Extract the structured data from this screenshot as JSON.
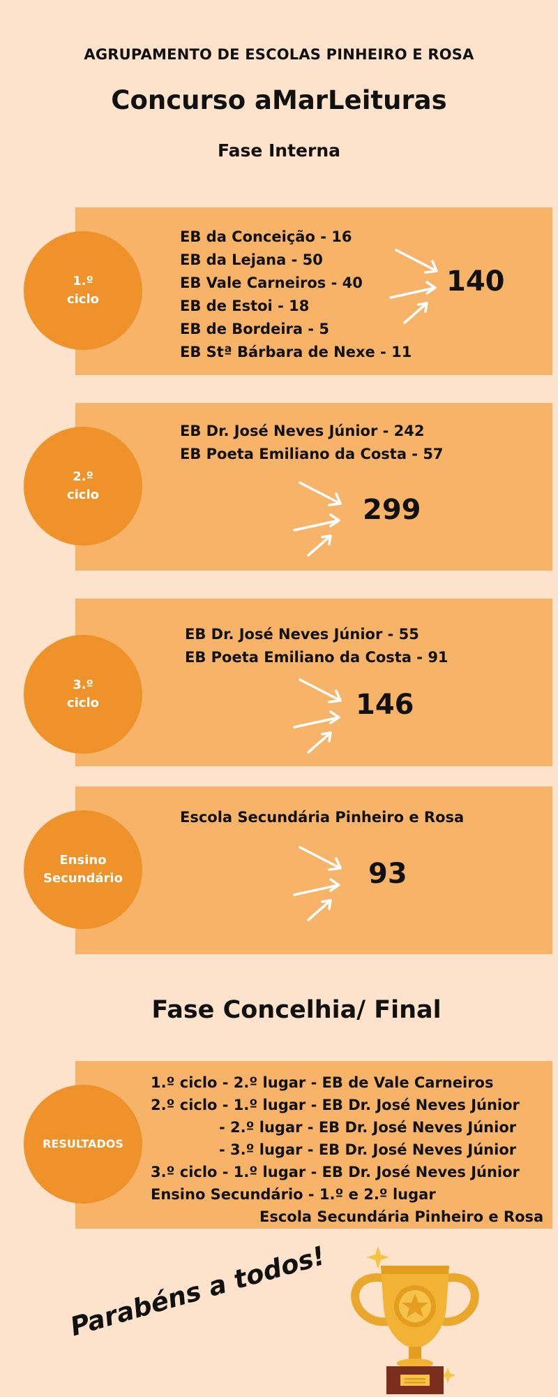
{
  "header": {
    "organization": "AGRUPAMENTO DE ESCOLAS PINHEIRO E ROSA",
    "title": "Concurso aMarLeituras",
    "phase": "Fase Interna"
  },
  "sections": [
    {
      "label_lines": [
        "1.º",
        "ciclo"
      ],
      "schools": [
        "EB da Conceição - 16",
        "EB da Lejana - 50",
        "EB Vale Carneiros - 40",
        "EB de Estoi - 18",
        "EB de Bordeira - 5",
        "EB Stª Bárbara de Nexe - 11"
      ],
      "total": "140"
    },
    {
      "label_lines": [
        "2.º",
        "ciclo"
      ],
      "schools": [
        "EB Dr. José Neves Júnior - 242",
        "EB Poeta Emiliano da Costa - 57"
      ],
      "total": "299"
    },
    {
      "label_lines": [
        "3.º",
        "ciclo"
      ],
      "schools": [
        "EB Dr. José Neves Júnior - 55",
        "EB Poeta Emiliano da Costa - 91"
      ],
      "total": "146"
    },
    {
      "label_lines": [
        "Ensino",
        "Secundário"
      ],
      "schools": [
        "Escola Secundária Pinheiro e Rosa"
      ],
      "total": "93"
    }
  ],
  "final": {
    "title": "Fase Concelhia/ Final",
    "label": "RESULTADOS",
    "results": [
      "1.º ciclo - 2.º lugar - EB de Vale Carneiros",
      "2.º ciclo - 1.º lugar - EB Dr. José Neves Júnior",
      "- 2.º lugar - EB Dr. José Neves Júnior",
      "- 3.º lugar - EB Dr. José Neves Júnior",
      "3.º ciclo - 1.º lugar - EB Dr. José Neves Júnior",
      "Ensino Secundário - 1.º e 2.º lugar",
      "Escola Secundária Pinheiro e Rosa"
    ]
  },
  "congrats": "Parabéns a todos!",
  "icons": {
    "arrows": "arrows-icon",
    "trophy": "trophy-icon"
  },
  "colors": {
    "background": "#fde3cb",
    "panel": "#f7b367",
    "circle": "#ef9229",
    "trophy": "#f2b233"
  }
}
